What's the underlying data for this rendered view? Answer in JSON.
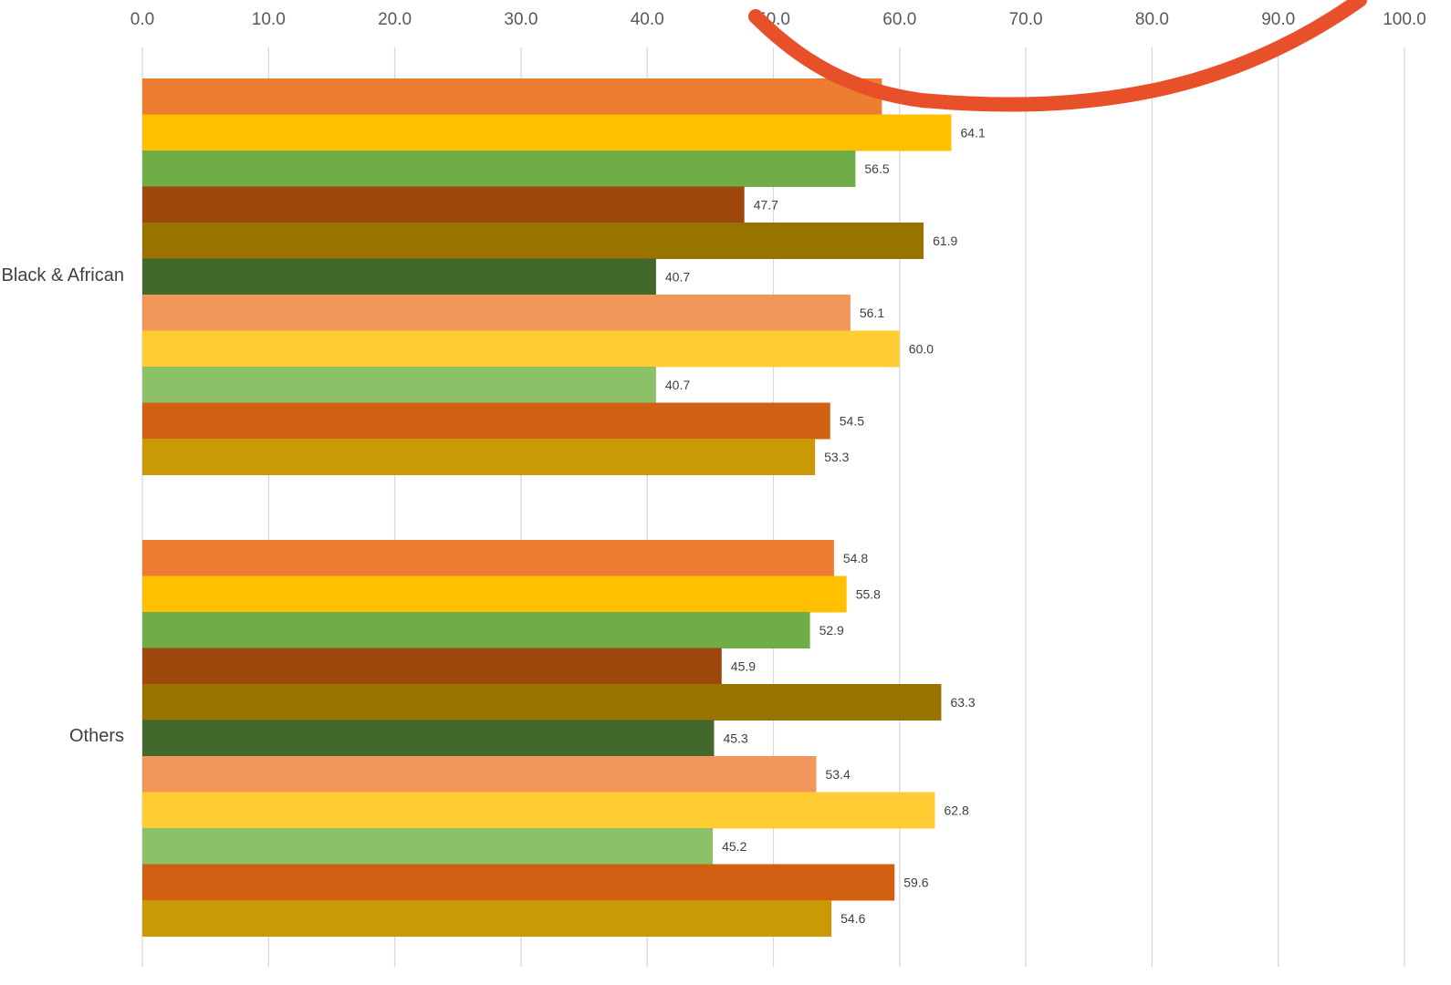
{
  "chart_data": {
    "type": "bar",
    "orientation": "horizontal",
    "title": "",
    "xlabel": "",
    "ylabel": "",
    "xlim": [
      0,
      100
    ],
    "ticks": [
      "0.0",
      "10.0",
      "20.0",
      "30.0",
      "40.0",
      "50.0",
      "60.0",
      "70.0",
      "80.0",
      "90.0",
      "100.0"
    ],
    "grid": "vertical",
    "categories": [
      "Black & African",
      "Others"
    ],
    "bar_colors": [
      "#ED7D31",
      "#FFC000",
      "#70AD47",
      "#9E480E",
      "#997300",
      "#43682B",
      "#F1975A",
      "#FFCD33",
      "#8CC168",
      "#D26012",
      "#C99A06"
    ],
    "groups": [
      {
        "category": "Black & African",
        "values": [
          58.6,
          64.1,
          56.5,
          47.7,
          61.9,
          40.7,
          56.1,
          60.0,
          40.7,
          54.5,
          53.3
        ],
        "labels": [
          "58.6",
          "64.1",
          "56.5",
          "47.7",
          "61.9",
          "40.7",
          "56.1",
          "60.0",
          "40.7",
          "54.5",
          "53.3"
        ]
      },
      {
        "category": "Others",
        "values": [
          54.8,
          55.8,
          52.9,
          45.9,
          63.3,
          45.3,
          53.4,
          62.8,
          45.2,
          59.6,
          54.6
        ],
        "labels": [
          "54.8",
          "55.8",
          "52.9",
          "45.9",
          "63.3",
          "45.3",
          "53.4",
          "62.8",
          "45.2",
          "59.6",
          "54.6"
        ]
      }
    ],
    "annotation_stroke_color": "#E8502A"
  }
}
